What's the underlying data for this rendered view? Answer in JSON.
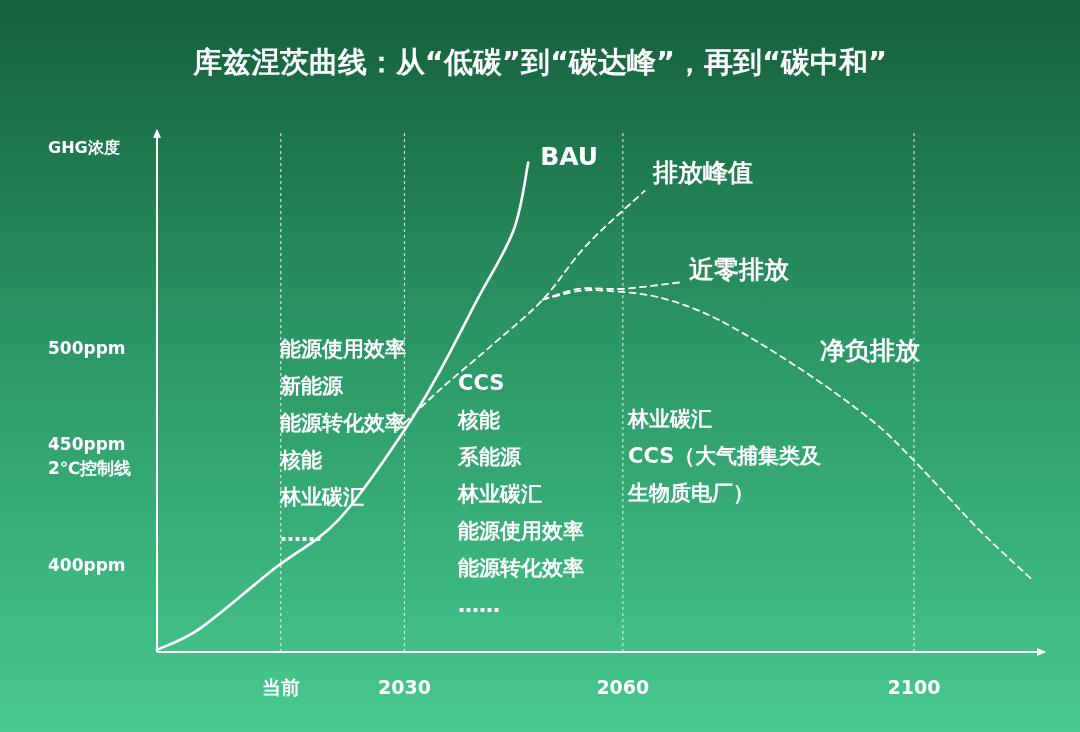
{
  "chart_data": {
    "type": "line",
    "title": "库兹涅茨曲线：从“低碳”到“碳达峰”，再到“碳中和”",
    "ylabel": "GHG浓度",
    "xlim": [
      1996,
      2118
    ],
    "ylim": [
      360,
      600
    ],
    "xticks": [
      {
        "value": 2013,
        "label": "当前"
      },
      2030,
      2060,
      2100
    ],
    "yticks": [
      {
        "value": 400,
        "label": "400ppm"
      },
      {
        "value": 450,
        "label": "450ppm\n2℃控制线"
      },
      {
        "value": 500,
        "label": "500ppm"
      }
    ],
    "grid": "x",
    "series": [
      {
        "name": "BAU",
        "color": "#ffffff",
        "line_style": "solid",
        "x": [
          1996,
          2002,
          2012,
          2021,
          2030,
          2035,
          2040,
          2045,
          2047
        ],
        "values": [
          361,
          371,
          398,
          421,
          462,
          490,
          522,
          554,
          585
        ]
      },
      {
        "name": "排放峰值",
        "color": "#ffffff",
        "line_style": "dashed",
        "x": [
          2029,
          2035,
          2042,
          2049,
          2055,
          2063
        ],
        "values": [
          462,
          481,
          501,
          522,
          547,
          572
        ]
      },
      {
        "name": "近零排放",
        "color": "#ffffff",
        "line_style": "dashed",
        "x": [
          2049,
          2054,
          2060,
          2068
        ],
        "values": [
          522,
          527,
          527,
          530
        ]
      },
      {
        "name": "净负排放",
        "color": "#ffffff",
        "line_style": "dashed",
        "x": [
          2049,
          2054,
          2058,
          2065,
          2073,
          2084,
          2094,
          2100,
          2109,
          2116
        ],
        "values": [
          522,
          526,
          526,
          523,
          513,
          491,
          467,
          448,
          416,
          394
        ]
      }
    ],
    "annotations": [
      "能源使用效率",
      "新能源",
      "能源转化效率",
      "核能",
      "林业碳汇",
      "……",
      "CCS",
      "核能",
      "系能源",
      "林业碳汇",
      "能源使用效率",
      "能源转化效率",
      "……",
      "林业碳汇",
      "CCS（大气捕集类及生物质电厂）"
    ]
  }
}
